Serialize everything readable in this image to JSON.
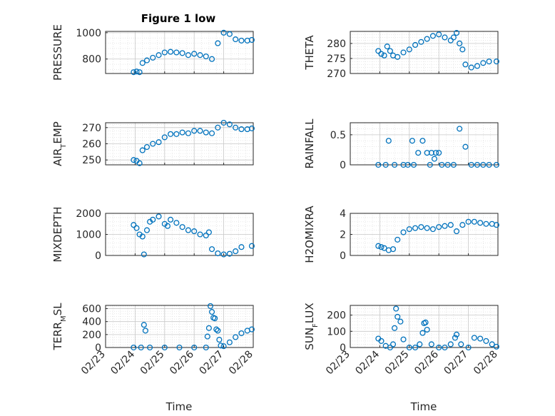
{
  "figure_title": "Figure 1 low",
  "colors": {
    "marker": "#0072BD",
    "text": "#262626",
    "grid": "#d9d9d9",
    "axis": "#262626"
  },
  "chart_data": [
    {
      "type": "scatter",
      "ylabel": "PRESSURE",
      "ylabel_sub": "",
      "ylabel_tail": "",
      "ylim": [
        690,
        1010
      ],
      "yticks": [
        "800",
        "1000"
      ],
      "ytick_values": [
        800,
        1000
      ],
      "x": [
        "02/23.95",
        "02/24.05",
        "02/24.15",
        "02/24.25",
        "02/24.4",
        "02/24.6",
        "02/24.8",
        "02/25",
        "02/25.2",
        "02/25.4",
        "02/25.6",
        "02/25.8",
        "02/26",
        "02/26.2",
        "02/26.4",
        "02/26.6",
        "02/26.8",
        "02/27",
        "02/27.2",
        "02/27.4",
        "02/27.6",
        "02/27.8",
        "02/27.95"
      ],
      "values": [
        700,
        705,
        700,
        770,
        790,
        810,
        830,
        850,
        855,
        850,
        845,
        830,
        840,
        830,
        820,
        800,
        920,
        1000,
        990,
        950,
        940,
        940,
        945
      ]
    },
    {
      "type": "scatter",
      "ylabel": "THETA",
      "ylabel_sub": "",
      "ylabel_tail": "",
      "ylim": [
        270,
        284
      ],
      "yticks": [
        "270",
        "275",
        "280"
      ],
      "ytick_values": [
        270,
        275,
        280
      ],
      "x": [
        "02/23.95",
        "02/24.05",
        "02/24.15",
        "02/24.25",
        "02/24.35",
        "02/24.45",
        "02/24.6",
        "02/24.8",
        "02/25",
        "02/25.2",
        "02/25.4",
        "02/25.6",
        "02/25.8",
        "02/26",
        "02/26.2",
        "02/26.4",
        "02/26.5",
        "02/26.6",
        "02/26.7",
        "02/26.8",
        "02/26.9",
        "02/27.1",
        "02/27.3",
        "02/27.5",
        "02/27.7",
        "02/27.95"
      ],
      "values": [
        277.5,
        276.5,
        276,
        279,
        277.5,
        276,
        275.5,
        277,
        278,
        279.5,
        280.5,
        281.5,
        282.5,
        283,
        282,
        281,
        282,
        283.5,
        280,
        278,
        273,
        272,
        272.5,
        273.5,
        274,
        274
      ]
    },
    {
      "type": "scatter",
      "ylabel": "AIR",
      "ylabel_sub": "T",
      "ylabel_tail": "EMP",
      "ylim": [
        247,
        273
      ],
      "yticks": [
        "250",
        "260",
        "270"
      ],
      "ytick_values": [
        250,
        260,
        270
      ],
      "x": [
        "02/23.95",
        "02/24.05",
        "02/24.15",
        "02/24.25",
        "02/24.4",
        "02/24.6",
        "02/24.8",
        "02/25",
        "02/25.2",
        "02/25.4",
        "02/25.6",
        "02/25.8",
        "02/26",
        "02/26.2",
        "02/26.4",
        "02/26.6",
        "02/26.8",
        "02/27",
        "02/27.2",
        "02/27.4",
        "02/27.6",
        "02/27.8",
        "02/27.95"
      ],
      "values": [
        250,
        249.5,
        248,
        256,
        258,
        260,
        261,
        264,
        266,
        266,
        267,
        266.5,
        268,
        268,
        267,
        266.5,
        270,
        273,
        272,
        270,
        269,
        269,
        269.5
      ]
    },
    {
      "type": "scatter",
      "ylabel": "RAINFALL",
      "ylabel_sub": "",
      "ylabel_tail": "",
      "ylim": [
        0,
        0.7
      ],
      "yticks": [
        "0",
        "0.5"
      ],
      "ytick_values": [
        0,
        0.5
      ],
      "x": [
        "02/23.95",
        "02/24.2",
        "02/24.3",
        "02/24.5",
        "02/24.8",
        "02/24.95",
        "02/25.1",
        "02/25.15",
        "02/25.3",
        "02/25.45",
        "02/25.6",
        "02/25.7",
        "02/25.75",
        "02/25.85",
        "02/25.9",
        "02/26",
        "02/26.1",
        "02/26.3",
        "02/26.5",
        "02/26.7",
        "02/26.9",
        "02/27.1",
        "02/27.3",
        "02/27.5",
        "02/27.7",
        "02/27.95"
      ],
      "values": [
        0,
        0,
        0.4,
        0,
        0,
        0,
        0.4,
        0,
        0.2,
        0.4,
        0.2,
        0,
        0.2,
        0.1,
        0.2,
        0.2,
        0,
        0,
        0,
        0.6,
        0.3,
        0,
        0,
        0,
        0,
        0
      ]
    },
    {
      "type": "scatter",
      "ylabel": "MIXDEPTH",
      "ylabel_sub": "",
      "ylabel_tail": "",
      "ylim": [
        0,
        2000
      ],
      "yticks": [
        "0",
        "1000",
        "2000"
      ],
      "ytick_values": [
        0,
        1000,
        2000
      ],
      "x": [
        "02/23.95",
        "02/24.05",
        "02/24.15",
        "02/24.25",
        "02/24.3",
        "02/24.4",
        "02/24.5",
        "02/24.6",
        "02/24.8",
        "02/25",
        "02/25.1",
        "02/25.2",
        "02/25.4",
        "02/25.6",
        "02/25.8",
        "02/26",
        "02/26.2",
        "02/26.4",
        "02/26.5",
        "02/26.6",
        "02/26.8",
        "02/27",
        "02/27.2",
        "02/27.4",
        "02/27.6",
        "02/27.95"
      ],
      "values": [
        1450,
        1300,
        1000,
        900,
        50,
        1200,
        1600,
        1700,
        1850,
        1500,
        1400,
        1700,
        1550,
        1350,
        1200,
        1150,
        1000,
        950,
        1100,
        300,
        100,
        50,
        80,
        200,
        400,
        450
      ]
    },
    {
      "type": "scatter",
      "ylabel": "H2OMIXRA",
      "ylabel_sub": "",
      "ylabel_tail": "",
      "ylim": [
        0,
        4
      ],
      "yticks": [
        "0",
        "2",
        "4"
      ],
      "ytick_values": [
        0,
        2,
        4
      ],
      "x": [
        "02/23.95",
        "02/24.05",
        "02/24.15",
        "02/24.3",
        "02/24.45",
        "02/24.6",
        "02/24.8",
        "02/25",
        "02/25.2",
        "02/25.4",
        "02/25.6",
        "02/25.8",
        "02/26",
        "02/26.2",
        "02/26.4",
        "02/26.6",
        "02/26.8",
        "02/27",
        "02/27.2",
        "02/27.4",
        "02/27.6",
        "02/27.8",
        "02/27.95"
      ],
      "values": [
        0.9,
        0.8,
        0.7,
        0.5,
        0.6,
        1.5,
        2.2,
        2.5,
        2.6,
        2.7,
        2.6,
        2.5,
        2.7,
        2.8,
        2.9,
        2.3,
        2.9,
        3.2,
        3.2,
        3.1,
        3,
        3,
        2.9
      ]
    },
    {
      "type": "scatter",
      "ylabel": "TERR",
      "ylabel_sub": "M",
      "ylabel_tail": "SL",
      "ylim": [
        0,
        650
      ],
      "yticks": [
        "0",
        "200",
        "400",
        "600"
      ],
      "ytick_values": [
        0,
        200,
        400,
        600
      ],
      "x": [
        "02/23.95",
        "02/24.2",
        "02/24.3",
        "02/24.35",
        "02/24.5",
        "02/25",
        "02/25.5",
        "02/26",
        "02/26.4",
        "02/26.45",
        "02/26.5",
        "02/26.55",
        "02/26.6",
        "02/26.65",
        "02/26.7",
        "02/26.75",
        "02/26.8",
        "02/26.85",
        "02/26.9",
        "02/27",
        "02/27.2",
        "02/27.4",
        "02/27.6",
        "02/27.8",
        "02/27.95"
      ],
      "values": [
        0,
        0,
        350,
        260,
        0,
        0,
        0,
        0,
        0,
        170,
        300,
        640,
        550,
        460,
        450,
        280,
        260,
        120,
        30,
        20,
        80,
        160,
        220,
        260,
        280
      ]
    },
    {
      "type": "scatter",
      "ylabel": "SUN",
      "ylabel_sub": "F",
      "ylabel_tail": "LUX",
      "ylim": [
        0,
        260
      ],
      "yticks": [
        "0",
        "100",
        "200"
      ],
      "ytick_values": [
        0,
        100,
        200
      ],
      "x": [
        "02/23.95",
        "02/24.05",
        "02/24.2",
        "02/24.35",
        "02/24.45",
        "02/24.5",
        "02/24.55",
        "02/24.6",
        "02/24.7",
        "02/24.8",
        "02/25",
        "02/25.2",
        "02/25.35",
        "02/25.45",
        "02/25.5",
        "02/25.55",
        "02/25.6",
        "02/25.75",
        "02/26",
        "02/26.2",
        "02/26.4",
        "02/26.55",
        "02/26.6",
        "02/26.75",
        "02/27",
        "02/27.2",
        "02/27.4",
        "02/27.6",
        "02/27.8",
        "02/27.95"
      ],
      "values": [
        55,
        40,
        10,
        0,
        20,
        120,
        240,
        190,
        160,
        50,
        0,
        0,
        20,
        90,
        150,
        155,
        110,
        20,
        0,
        0,
        20,
        60,
        80,
        20,
        0,
        60,
        55,
        40,
        20,
        5
      ]
    }
  ],
  "xticks": [
    "02/23",
    "02/24",
    "02/25",
    "02/26",
    "02/27",
    "02/28"
  ],
  "xlabel": "Time"
}
